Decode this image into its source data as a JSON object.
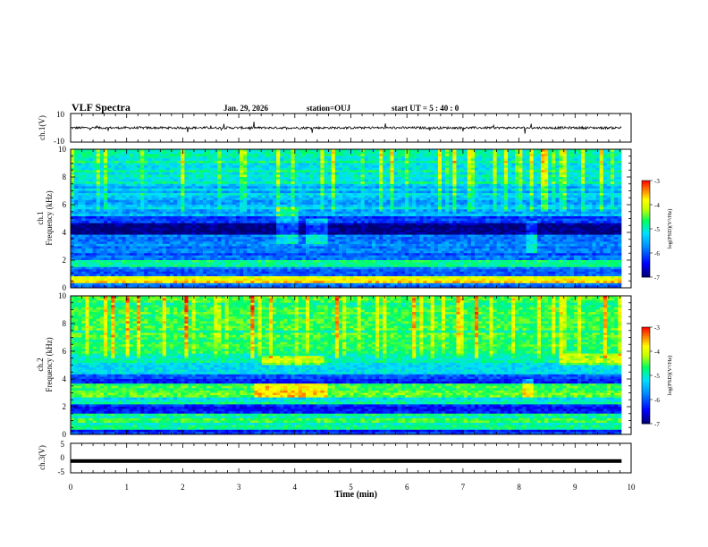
{
  "header": {
    "title": "VLF Spectra",
    "date": "Jan. 29, 2026",
    "station": "station=OUJ",
    "start": "start  UT =  5 : 40 : 0"
  },
  "chart_data": [
    {
      "type": "line",
      "name": "ch1-waveform",
      "ylabel": "ch.1(V)",
      "ylim": [
        -10,
        10
      ],
      "yticks": [
        "10",
        "-10"
      ],
      "baseline": 0
    },
    {
      "type": "heatmap",
      "name": "ch1-spectrogram",
      "ylabel_top": "ch.1",
      "ylabel": "Frequency (kHz)",
      "xlim": [
        0,
        10
      ],
      "ylim": [
        0,
        10
      ],
      "yticks": [
        "0",
        "2",
        "4",
        "6",
        "8",
        "10"
      ],
      "data_end_min": 9.83,
      "colorbar": {
        "label": "log(PSD)(V²/Hz)",
        "range": [
          -7,
          -3
        ],
        "ticks": [
          "-3",
          "-4",
          "-5",
          "-6",
          "-7"
        ]
      },
      "bursts": [
        {
          "t": [
            3.7,
            4.05
          ],
          "f": [
            3.2,
            5.8
          ]
        },
        {
          "t": [
            4.2,
            4.6
          ],
          "f": [
            3.2,
            5.0
          ]
        },
        {
          "t": [
            8.1,
            8.35
          ],
          "f": [
            2.5,
            4.8
          ]
        }
      ]
    },
    {
      "type": "heatmap",
      "name": "ch2-spectrogram",
      "ylabel_top": "ch.2",
      "ylabel": "Frequency (kHz)",
      "xlim": [
        0,
        10
      ],
      "ylim": [
        0,
        10
      ],
      "yticks": [
        "0",
        "2",
        "4",
        "6",
        "8",
        "10"
      ],
      "data_end_min": 9.83,
      "colorbar": {
        "label": "log(PSD)(V²/Hz)",
        "range": [
          -7,
          -3
        ],
        "ticks": [
          "-3",
          "-4",
          "-5",
          "-6",
          "-7"
        ]
      },
      "bursts": [
        {
          "t": [
            3.3,
            4.6
          ],
          "f": [
            2.6,
            3.6
          ]
        },
        {
          "t": [
            3.4,
            4.5
          ],
          "f": [
            5.0,
            5.6
          ]
        },
        {
          "t": [
            8.05,
            8.25
          ],
          "f": [
            2.6,
            4.0
          ]
        },
        {
          "t": [
            8.7,
            9.8
          ],
          "f": [
            5.0,
            5.8
          ]
        }
      ]
    },
    {
      "type": "line",
      "name": "ch3-waveform",
      "ylabel": "ch.3(V)",
      "ylim": [
        -5,
        5
      ],
      "yticks": [
        "5",
        "0",
        "-5"
      ],
      "level": -1,
      "xlabel": "Time (min)",
      "xticks": [
        "0",
        "1",
        "2",
        "3",
        "4",
        "5",
        "6",
        "7",
        "8",
        "9",
        "10"
      ]
    }
  ],
  "colormap": [
    "#000080",
    "#0000ff",
    "#00c8ff",
    "#00ff80",
    "#ffff00",
    "#ff8000",
    "#ff0000",
    "#ffffff"
  ]
}
